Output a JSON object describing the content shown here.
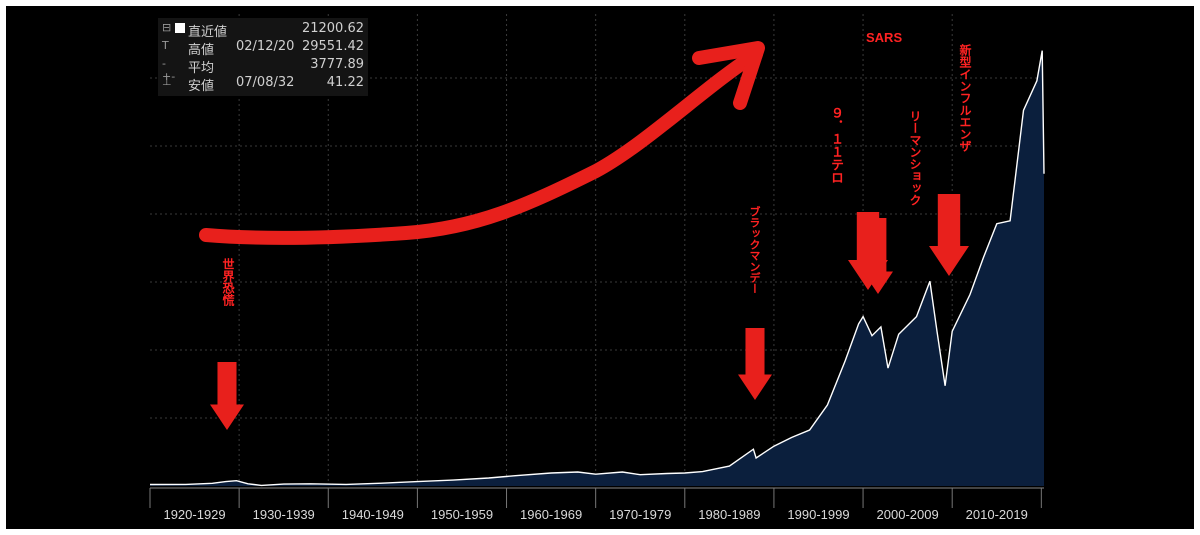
{
  "legend": {
    "rows": [
      {
        "symbol": "⊟",
        "label": "直近値",
        "date": "",
        "value": "21200.62"
      },
      {
        "symbol": "T",
        "label": "高値",
        "date": "02/12/20",
        "value": "29551.42"
      },
      {
        "symbol": "-+-",
        "label": "平均",
        "date": "",
        "value": "3777.89"
      },
      {
        "symbol": "⊥",
        "label": "安値",
        "date": "07/08/32",
        "value": "41.22"
      }
    ]
  },
  "annotations": {
    "depression": "世界恐慌",
    "black_monday": "ブラックマンデー",
    "sars": "SARS",
    "nine_eleven": "９．１１テロ",
    "lehman": "リーマンショック",
    "flu": "新型インフルエンザ"
  },
  "colors": {
    "background": "#000000",
    "area_fill": "#0b1f3d",
    "line": "#ffffff",
    "annotation": "#e8201c"
  },
  "chart_data": {
    "type": "area",
    "title": "",
    "xlabel": "",
    "ylabel": "",
    "x_categories": [
      "1920-1929",
      "1930-1939",
      "1940-1949",
      "1950-1959",
      "1960-1969",
      "1970-1979",
      "1980-1989",
      "1990-1999",
      "2000-2009",
      "2010-2019"
    ],
    "x_range": [
      1920,
      2020.3
    ],
    "y_range": [
      0,
      30000
    ],
    "grid": true,
    "x": [
      1920,
      1924,
      1927,
      1928.5,
      1929.7,
      1931,
      1932.5,
      1935,
      1938,
      1942,
      1946,
      1950,
      1954,
      1958,
      1961,
      1965,
      1968,
      1970,
      1973,
      1975,
      1978,
      1980,
      1982,
      1985,
      1987.7,
      1988,
      1990,
      1992,
      1994,
      1996,
      1998,
      1999.5,
      2000,
      2001,
      2002,
      2002.8,
      2004,
      2006,
      2007.5,
      2008.3,
      2009.2,
      2010,
      2012,
      2013.5,
      2015,
      2016.5,
      2018,
      2019.5,
      2020.1,
      2020.3
    ],
    "y": [
      100,
      110,
      180,
      300,
      360,
      150,
      41,
      130,
      150,
      110,
      190,
      300,
      400,
      540,
      700,
      880,
      950,
      800,
      950,
      770,
      850,
      880,
      980,
      1350,
      2500,
      1900,
      2700,
      3300,
      3800,
      5500,
      8500,
      11000,
      11500,
      10200,
      10800,
      8000,
      10300,
      11500,
      13900,
      10500,
      6800,
      10500,
      13000,
      15500,
      17800,
      18000,
      25500,
      27500,
      29551,
      21200
    ],
    "series": [
      {
        "values_ref": "y"
      }
    ]
  }
}
